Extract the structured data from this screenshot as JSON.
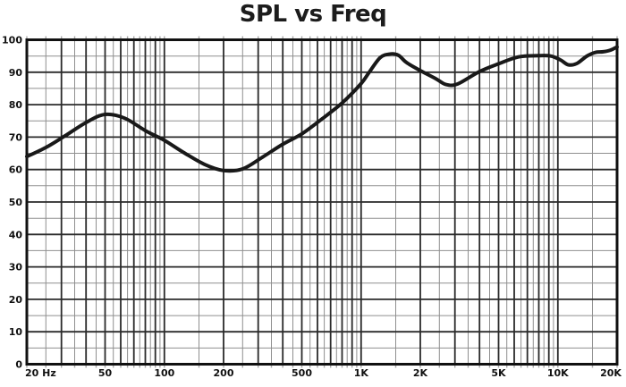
{
  "chart_data": {
    "type": "line",
    "title": "SPL vs Freq",
    "xscale": "log",
    "xlim": [
      20,
      20000
    ],
    "ylim": [
      0,
      100
    ],
    "y_major_step": 10,
    "y_minor_step": 5,
    "grid": "log-x minor+major, linear-y 5/10",
    "legend": "none",
    "x_tick_labels": [
      {
        "value": 20,
        "label": "20 Hz"
      },
      {
        "value": 50,
        "label": "50"
      },
      {
        "value": 100,
        "label": "100"
      },
      {
        "value": 200,
        "label": "200"
      },
      {
        "value": 500,
        "label": "500"
      },
      {
        "value": 1000,
        "label": "1K"
      },
      {
        "value": 2000,
        "label": "2K"
      },
      {
        "value": 5000,
        "label": "5K"
      },
      {
        "value": 10000,
        "label": "10K"
      },
      {
        "value": 20000,
        "label": "20K"
      }
    ],
    "y_tick_labels": [
      {
        "value": 100,
        "label": "100"
      },
      {
        "value": 90,
        "label": "90"
      },
      {
        "value": 80,
        "label": "80"
      },
      {
        "value": 70,
        "label": "70"
      },
      {
        "value": 60,
        "label": "60"
      },
      {
        "value": 50,
        "label": "50"
      },
      {
        "value": 40,
        "label": "40"
      },
      {
        "value": 30,
        "label": "30"
      },
      {
        "value": 20,
        "label": "20"
      },
      {
        "value": 10,
        "label": "10"
      },
      {
        "value": 0,
        "label": "0"
      }
    ],
    "series": [
      {
        "name": "SPL",
        "points": [
          [
            20,
            64
          ],
          [
            25,
            66.8
          ],
          [
            31.5,
            70.5
          ],
          [
            40,
            74.5
          ],
          [
            50,
            77
          ],
          [
            63,
            75.8
          ],
          [
            80,
            72
          ],
          [
            100,
            69
          ],
          [
            125,
            65.3
          ],
          [
            160,
            61.6
          ],
          [
            200,
            59.7
          ],
          [
            250,
            60.2
          ],
          [
            315,
            63.8
          ],
          [
            400,
            67.8
          ],
          [
            500,
            71
          ],
          [
            630,
            75.5
          ],
          [
            800,
            80.5
          ],
          [
            1000,
            86.5
          ],
          [
            1100,
            90
          ],
          [
            1250,
            94.5
          ],
          [
            1400,
            95.6
          ],
          [
            1550,
            95.2
          ],
          [
            1700,
            93
          ],
          [
            2000,
            90.5
          ],
          [
            2400,
            88
          ],
          [
            2700,
            86.2
          ],
          [
            3100,
            86.4
          ],
          [
            4000,
            90.2
          ],
          [
            5000,
            92.6
          ],
          [
            6300,
            94.7
          ],
          [
            8000,
            95.1
          ],
          [
            9200,
            95
          ],
          [
            10300,
            93.8
          ],
          [
            11300,
            92.3
          ],
          [
            12500,
            92.7
          ],
          [
            14000,
            94.9
          ],
          [
            15500,
            96.1
          ],
          [
            17000,
            96.3
          ],
          [
            18500,
            96.8
          ],
          [
            20000,
            97.8
          ]
        ]
      }
    ],
    "colors": {
      "curve": "#191919",
      "grid_major": "#2a2a2a",
      "grid_minor": "#8f8f8f",
      "frame": "#111111",
      "tick_stub": "#aaaaaa",
      "label": "#111111",
      "title": "#1c1c1c",
      "background": "#ffffff"
    }
  }
}
